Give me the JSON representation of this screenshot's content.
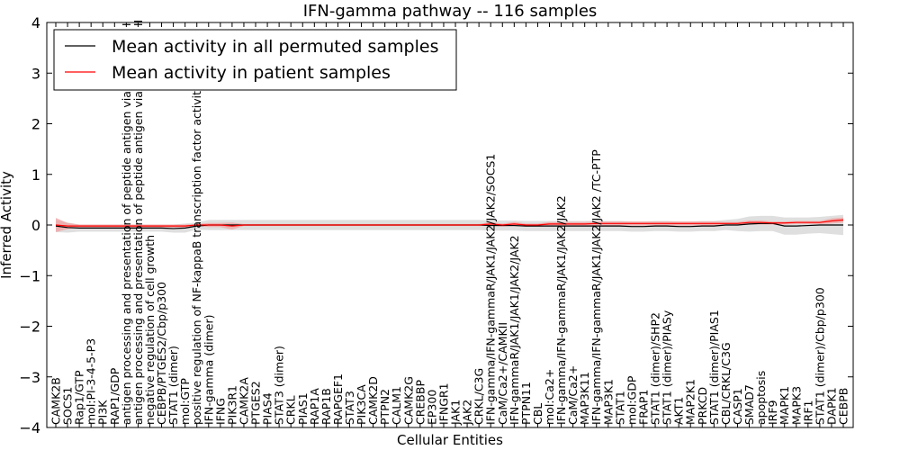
{
  "chart_data": {
    "type": "line",
    "title": "IFN-gamma pathway -- 116 samples",
    "xlabel": "Cellular Entities",
    "ylabel": "Inferred Activity",
    "ylim": [
      -4,
      4
    ],
    "yticks": [
      -4,
      -3,
      -2,
      -1,
      0,
      1,
      2,
      3,
      4
    ],
    "ytick_labels": [
      "−4",
      "−3",
      "−2",
      "−1",
      "0",
      "1",
      "2",
      "3",
      "4"
    ],
    "grid": false,
    "legend_position": "top-left",
    "categories": [
      "CAMK2B",
      "SOCS1",
      "Rap1/GTP",
      "mol:PI-3-4-5-P3",
      "PI3K",
      "RAP1/GDP",
      "antigen processing and presentation of peptide antigen via MHC class I",
      "antigen processing and presentation of peptide antigen via MHC class II",
      "negative regulation of cell growth",
      "CEBPB/PTGES2/Cbp/p300",
      "STAT1 (dimer)",
      "mol:GTP",
      "positive regulation of NF-kappaB transcription factor activity",
      "IFN-gamma (dimer)",
      "IFNG",
      "PIK3R1",
      "CAMK2A",
      "PTGES2",
      "PIAS4",
      "STAT3 (dimer)",
      "CRKL",
      "PIAS1",
      "RAP1A",
      "RAP1B",
      "RAPGEF1",
      "STAT3",
      "PIK3CA",
      "CAMK2D",
      "PTPN2",
      "CALM1",
      "CAMK2G",
      "CREBBP",
      "EP300",
      "IFNGR1",
      "JAK1",
      "JAK2",
      "CRKL/C3G",
      "IFN-gamma/IFN-gammaR/JAK1/JAK2/JAK2/SOCS1",
      "CaM/Ca2+/CAMKII",
      "IFN-gammaR/JAK1/JAK1/JAK2/JAK2",
      "PTPN11",
      "CBL",
      "mol:Ca2+",
      "IFN-gamma/IFN-gammaR/JAK1/JAK2/JAK2",
      "CaM/Ca2+",
      "MAP3K11",
      "IFN-gamma/IFN-gammaR/JAK1/JAK2/JAK2  /TC-PTP",
      "MAP3K1",
      "STAT1",
      "mol:GDP",
      "FRAP1",
      "STAT1 (dimer)/SHP2",
      "STAT1 (dimer)/PIASy",
      "AKT1",
      "MAP2K1",
      "PRKCD",
      "STAT1 (dimer)/PIAS1",
      "CBL/CRKL/C3G",
      "CASP1",
      "SMAD7",
      "apoptosis",
      "IRF9",
      "MAPK1",
      "MAPK3",
      "IRF1",
      "STAT1 (dimer)/Cbp/p300",
      "DAPK1",
      "CEBPB"
    ],
    "series": [
      {
        "name": "Mean activity in all permuted samples",
        "color": "#000000",
        "band_color": "#d9d9d9",
        "values": [
          -0.02,
          -0.05,
          -0.06,
          -0.06,
          -0.06,
          -0.06,
          -0.06,
          -0.06,
          -0.06,
          -0.06,
          -0.07,
          -0.06,
          -0.02,
          0.0,
          0.0,
          0.0,
          0.0,
          0.0,
          0.0,
          0.0,
          0.0,
          0.0,
          0.0,
          0.0,
          0.0,
          0.0,
          0.0,
          0.0,
          0.0,
          0.0,
          0.0,
          0.0,
          0.0,
          0.0,
          0.0,
          0.0,
          0.0,
          -0.01,
          -0.01,
          -0.01,
          -0.02,
          -0.02,
          -0.02,
          -0.02,
          -0.02,
          -0.02,
          -0.02,
          -0.02,
          -0.02,
          -0.03,
          -0.03,
          -0.02,
          -0.02,
          -0.03,
          -0.03,
          -0.02,
          -0.02,
          0.0,
          0.0,
          0.02,
          0.03,
          0.03,
          -0.02,
          -0.02,
          -0.01,
          0.0,
          0.0,
          0.0
        ],
        "band": [
          0.12,
          0.1,
          0.07,
          0.07,
          0.07,
          0.07,
          0.07,
          0.07,
          0.07,
          0.07,
          0.08,
          0.09,
          0.07,
          0.1,
          0.1,
          0.1,
          0.1,
          0.1,
          0.1,
          0.1,
          0.1,
          0.1,
          0.1,
          0.1,
          0.1,
          0.1,
          0.1,
          0.1,
          0.1,
          0.1,
          0.1,
          0.1,
          0.1,
          0.1,
          0.1,
          0.1,
          0.1,
          0.1,
          0.1,
          0.1,
          0.1,
          0.1,
          0.1,
          0.1,
          0.1,
          0.1,
          0.1,
          0.1,
          0.1,
          0.1,
          0.1,
          0.1,
          0.1,
          0.1,
          0.1,
          0.1,
          0.1,
          0.1,
          0.12,
          0.15,
          0.15,
          0.15,
          0.17,
          0.17,
          0.16,
          0.16,
          0.18,
          0.2
        ]
      },
      {
        "name": "Mean activity in patient samples",
        "color": "#ff0000",
        "band_color": "#f2a0a0",
        "values": [
          0.0,
          -0.02,
          -0.02,
          -0.02,
          -0.02,
          -0.02,
          -0.02,
          -0.02,
          -0.02,
          -0.02,
          -0.02,
          -0.02,
          0.0,
          0.0,
          0.0,
          -0.02,
          0.0,
          0.0,
          0.0,
          0.0,
          0.0,
          0.0,
          0.0,
          0.0,
          0.0,
          0.0,
          0.0,
          0.0,
          0.0,
          0.0,
          0.0,
          0.0,
          0.0,
          0.0,
          0.0,
          0.0,
          0.0,
          0.02,
          0.0,
          0.02,
          0.0,
          0.0,
          0.02,
          0.02,
          0.02,
          0.02,
          0.03,
          0.03,
          0.03,
          0.03,
          0.03,
          0.03,
          0.03,
          0.03,
          0.03,
          0.03,
          0.03,
          0.03,
          0.03,
          0.05,
          0.05,
          0.04,
          0.04,
          0.05,
          0.05,
          0.05,
          0.08,
          0.1
        ],
        "band": [
          0.14,
          0.06,
          0.03,
          0.03,
          0.03,
          0.03,
          0.03,
          0.03,
          0.03,
          0.03,
          0.03,
          0.03,
          0.02,
          0.04,
          0.04,
          0.07,
          0.02,
          0.02,
          0.02,
          0.02,
          0.02,
          0.02,
          0.02,
          0.02,
          0.02,
          0.02,
          0.02,
          0.02,
          0.02,
          0.02,
          0.02,
          0.02,
          0.02,
          0.02,
          0.02,
          0.02,
          0.02,
          0.04,
          0.03,
          0.04,
          0.03,
          0.03,
          0.04,
          0.04,
          0.04,
          0.04,
          0.04,
          0.04,
          0.04,
          0.04,
          0.04,
          0.04,
          0.04,
          0.04,
          0.04,
          0.04,
          0.04,
          0.03,
          0.03,
          0.04,
          0.04,
          0.03,
          0.03,
          0.03,
          0.03,
          0.03,
          0.05,
          0.05
        ]
      }
    ]
  }
}
